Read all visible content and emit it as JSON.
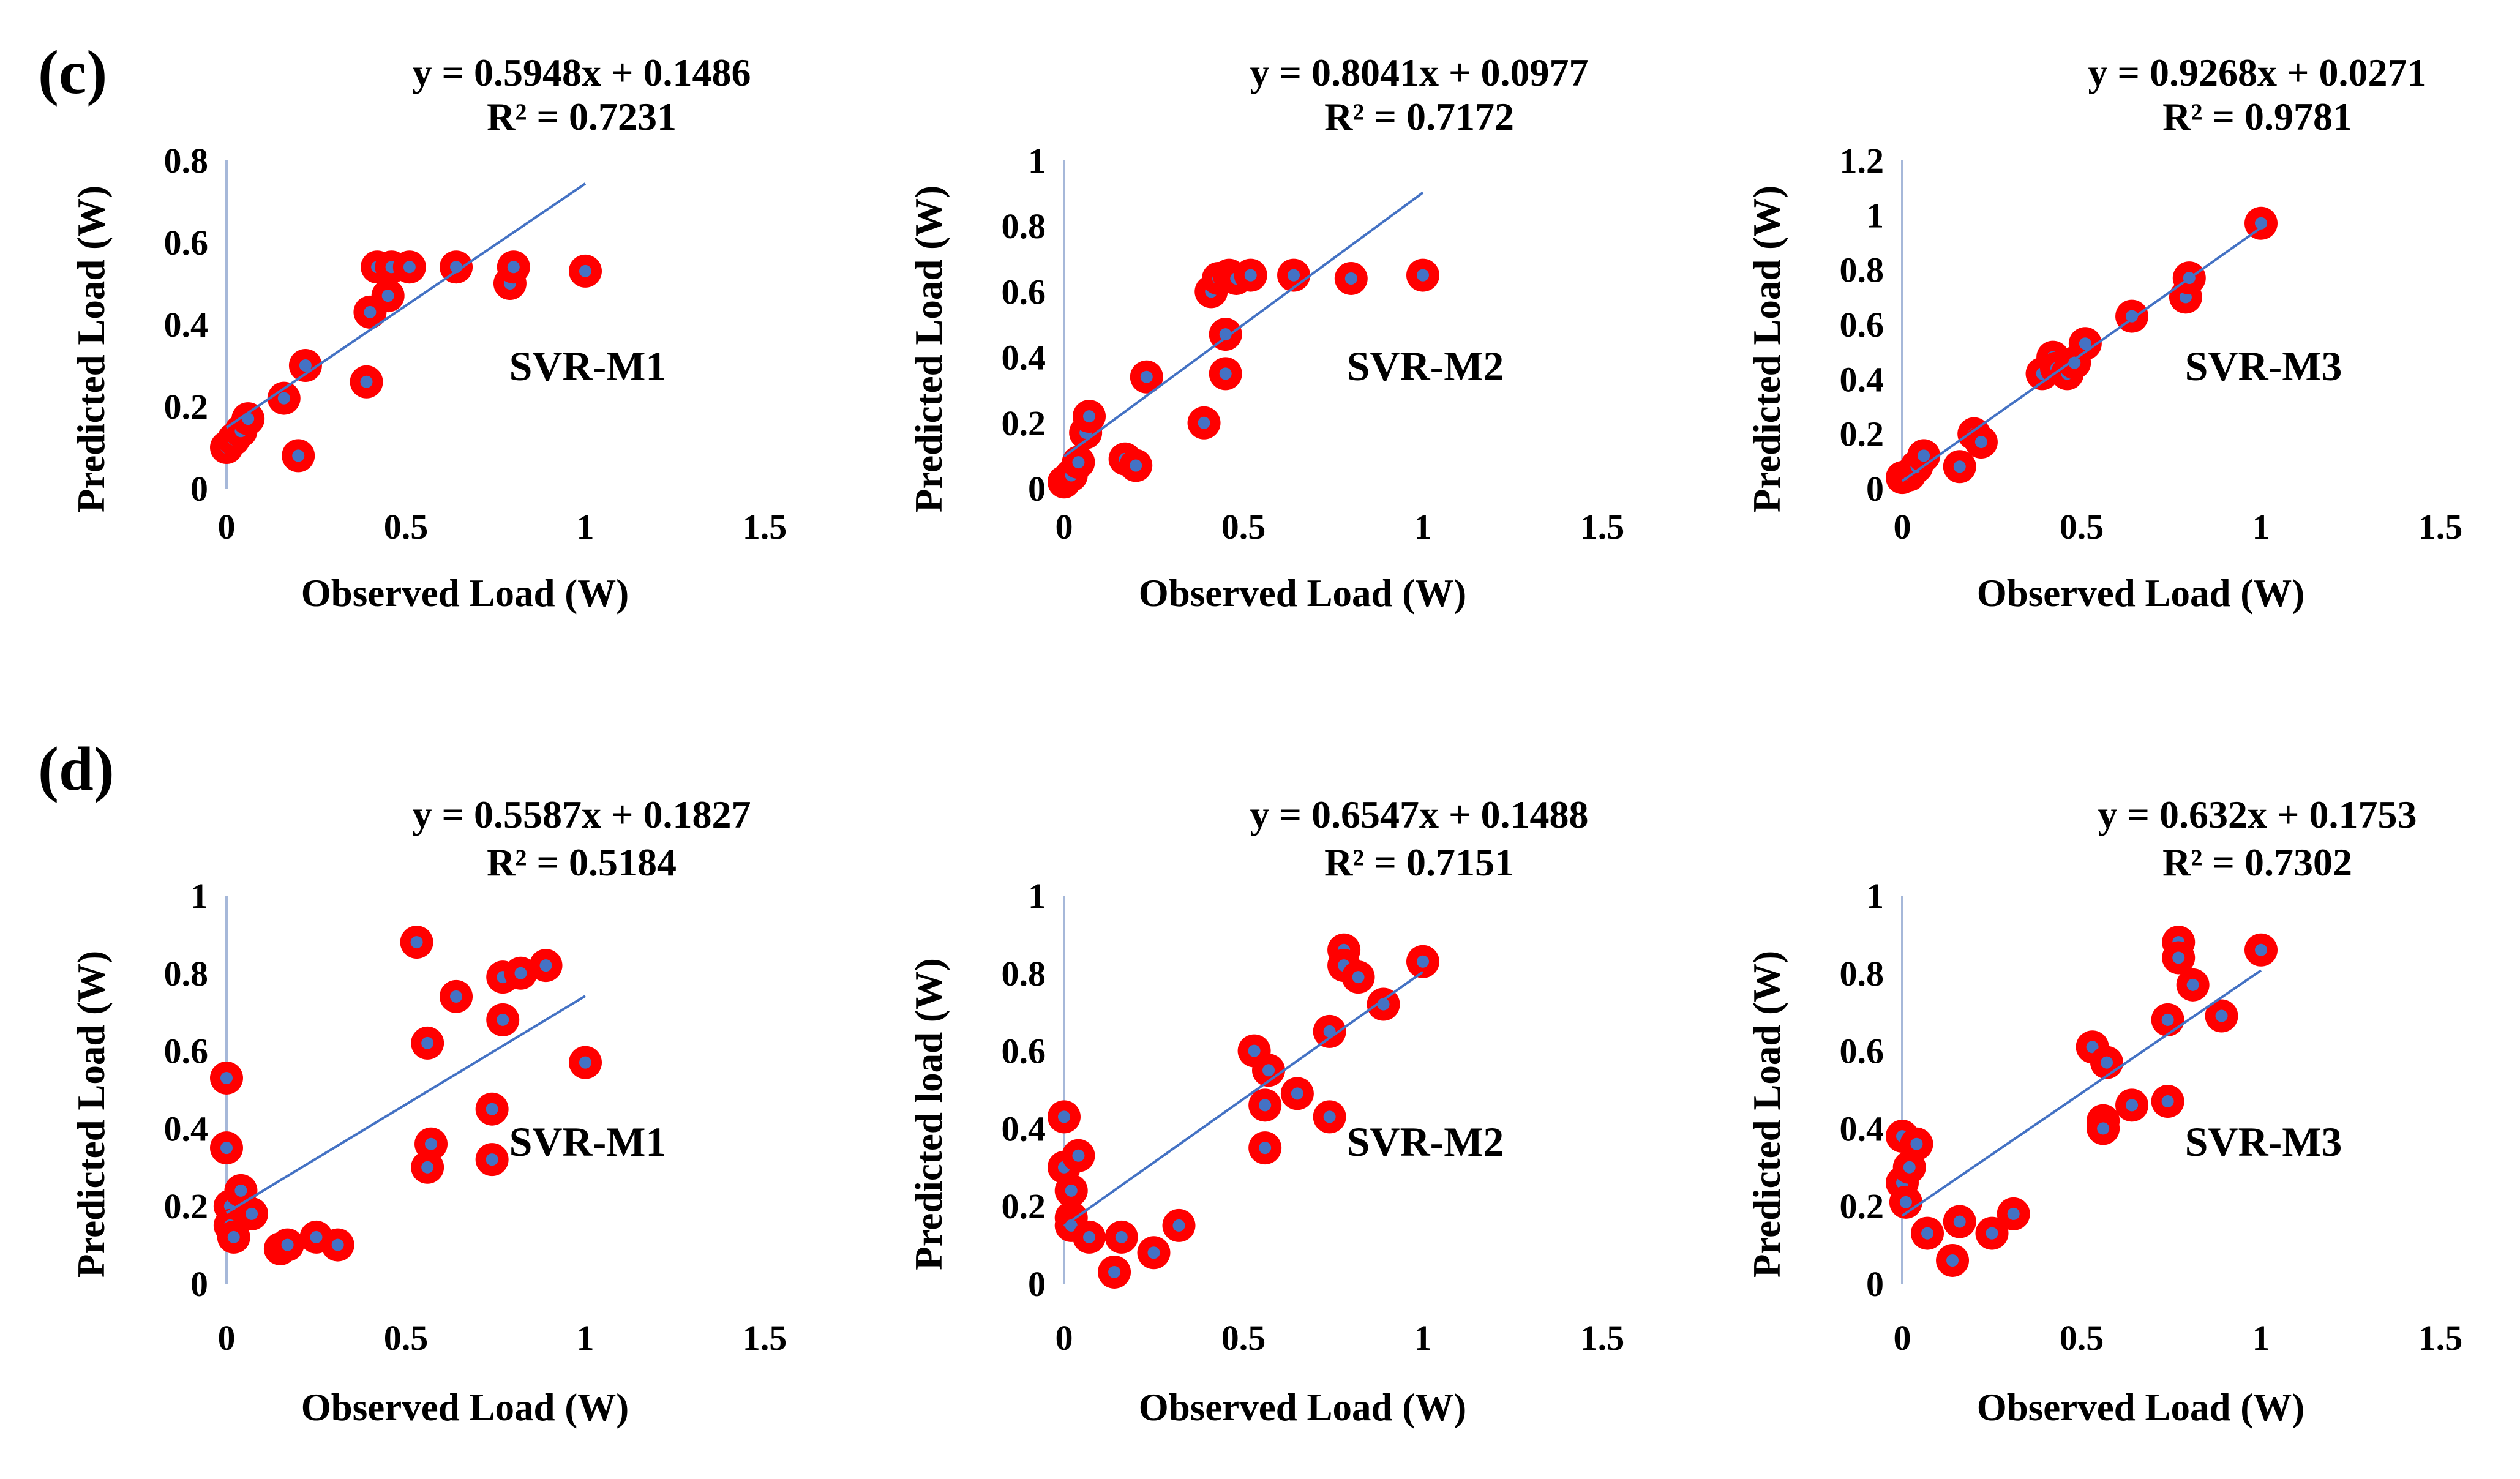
{
  "panels": [
    {
      "label": "(c)",
      "charts": [
        {
          "type": "scatter",
          "model": "SVR-M1",
          "equation": "y = 0.5948x + 0.1486",
          "r2": "R² = 0.7231",
          "xlabel": "Observed Load (W)",
          "ylabel": "Predicted Load (W)",
          "xlim": [
            0,
            1.5
          ],
          "ylim": [
            0,
            0.8
          ],
          "xticks": [
            "0",
            "0.5",
            "1",
            "1.5"
          ],
          "yticks": [
            "0",
            "0.2",
            "0.4",
            "0.6",
            "0.8"
          ],
          "trend": {
            "slope": 0.5948,
            "intercept": 0.1486,
            "x_range": [
              0,
              1
            ]
          },
          "points": [
            [
              0.0,
              0.1
            ],
            [
              0.02,
              0.12
            ],
            [
              0.04,
              0.14
            ],
            [
              0.06,
              0.17
            ],
            [
              0.16,
              0.22
            ],
            [
              0.2,
              0.08
            ],
            [
              0.22,
              0.3
            ],
            [
              0.39,
              0.26
            ],
            [
              0.4,
              0.43
            ],
            [
              0.42,
              0.54
            ],
            [
              0.45,
              0.47
            ],
            [
              0.46,
              0.54
            ],
            [
              0.51,
              0.54
            ],
            [
              0.64,
              0.54
            ],
            [
              0.79,
              0.5
            ],
            [
              0.8,
              0.54
            ],
            [
              1.0,
              0.53
            ]
          ]
        },
        {
          "type": "scatter",
          "model": "SVR-M2",
          "equation": "y = 0.8041x + 0.0977",
          "r2": "R² = 0.7172",
          "xlabel": "Observed Load (W)",
          "ylabel": "Predicted Load (W)",
          "xlim": [
            0,
            1.5
          ],
          "ylim": [
            0,
            1
          ],
          "xticks": [
            "0",
            "0.5",
            "1",
            "1.5"
          ],
          "yticks": [
            "0",
            "0.2",
            "0.4",
            "0.6",
            "0.8",
            "1"
          ],
          "trend": {
            "slope": 0.8041,
            "intercept": 0.0977,
            "x_range": [
              0,
              1
            ]
          },
          "points": [
            [
              0.0,
              0.02
            ],
            [
              0.02,
              0.04
            ],
            [
              0.04,
              0.08
            ],
            [
              0.06,
              0.17
            ],
            [
              0.07,
              0.22
            ],
            [
              0.17,
              0.09
            ],
            [
              0.2,
              0.07
            ],
            [
              0.23,
              0.34
            ],
            [
              0.39,
              0.2
            ],
            [
              0.41,
              0.6
            ],
            [
              0.43,
              0.64
            ],
            [
              0.45,
              0.47
            ],
            [
              0.45,
              0.35
            ],
            [
              0.46,
              0.65
            ],
            [
              0.48,
              0.64
            ],
            [
              0.52,
              0.65
            ],
            [
              0.64,
              0.65
            ],
            [
              0.8,
              0.64
            ],
            [
              1.0,
              0.65
            ]
          ]
        },
        {
          "type": "scatter",
          "model": "SVR-M3",
          "equation": "y = 0.9268x + 0.0271",
          "r2": "R² = 0.9781",
          "xlabel": "Observed Load (W)",
          "ylabel": "Predicted Load (W)",
          "xlim": [
            0,
            1.5
          ],
          "ylim": [
            0,
            1.2
          ],
          "xticks": [
            "0",
            "0.5",
            "1",
            "1.5"
          ],
          "yticks": [
            "0",
            "0.2",
            "0.4",
            "0.6",
            "0.8",
            "1",
            "1.2"
          ],
          "trend": {
            "slope": 0.9268,
            "intercept": 0.0271,
            "x_range": [
              0,
              1
            ]
          },
          "points": [
            [
              0.0,
              0.04
            ],
            [
              0.02,
              0.05
            ],
            [
              0.04,
              0.08
            ],
            [
              0.06,
              0.12
            ],
            [
              0.16,
              0.08
            ],
            [
              0.2,
              0.2
            ],
            [
              0.22,
              0.17
            ],
            [
              0.39,
              0.42
            ],
            [
              0.42,
              0.48
            ],
            [
              0.43,
              0.44
            ],
            [
              0.46,
              0.42
            ],
            [
              0.48,
              0.46
            ],
            [
              0.51,
              0.53
            ],
            [
              0.64,
              0.63
            ],
            [
              0.79,
              0.7
            ],
            [
              0.8,
              0.77
            ],
            [
              1.0,
              0.97
            ]
          ]
        }
      ]
    },
    {
      "label": "(d)",
      "charts": [
        {
          "type": "scatter",
          "model": "SVR-M1",
          "equation": "y = 0.5587x + 0.1827",
          "r2": "R² = 0.5184",
          "xlabel": "Observed Load (W)",
          "ylabel": "Predicted Load (W)",
          "xlim": [
            0,
            1.5
          ],
          "ylim": [
            0,
            1
          ],
          "xticks": [
            "0",
            "0.5",
            "1",
            "1.5"
          ],
          "yticks": [
            "0",
            "0.2",
            "0.4",
            "0.6",
            "0.8",
            "1"
          ],
          "trend": {
            "slope": 0.5587,
            "intercept": 0.1827,
            "x_range": [
              0,
              1
            ]
          },
          "points": [
            [
              0.0,
              0.53
            ],
            [
              0.0,
              0.35
            ],
            [
              0.01,
              0.2
            ],
            [
              0.01,
              0.15
            ],
            [
              0.02,
              0.12
            ],
            [
              0.04,
              0.24
            ],
            [
              0.07,
              0.18
            ],
            [
              0.15,
              0.09
            ],
            [
              0.17,
              0.1
            ],
            [
              0.25,
              0.12
            ],
            [
              0.31,
              0.1
            ],
            [
              0.53,
              0.88
            ],
            [
              0.56,
              0.62
            ],
            [
              0.57,
              0.36
            ],
            [
              0.56,
              0.3
            ],
            [
              0.64,
              0.74
            ],
            [
              0.74,
              0.45
            ],
            [
              0.74,
              0.32
            ],
            [
              0.77,
              0.79
            ],
            [
              0.77,
              0.68
            ],
            [
              0.82,
              0.8
            ],
            [
              0.89,
              0.82
            ],
            [
              1.0,
              0.57
            ]
          ]
        },
        {
          "type": "scatter",
          "model": "SVR-M2",
          "equation": "y = 0.6547x + 0.1488",
          "r2": "R² = 0.7151",
          "xlabel": "Observed Load (W)",
          "ylabel": "Predicted load (W)",
          "xlim": [
            0,
            1.5
          ],
          "ylim": [
            0,
            1
          ],
          "xticks": [
            "0",
            "0.5",
            "1",
            "1.5"
          ],
          "yticks": [
            "0",
            "0.2",
            "0.4",
            "0.6",
            "0.8",
            "1"
          ],
          "trend": {
            "slope": 0.6547,
            "intercept": 0.1488,
            "x_range": [
              0,
              1
            ]
          },
          "points": [
            [
              0.0,
              0.43
            ],
            [
              0.0,
              0.3
            ],
            [
              0.02,
              0.24
            ],
            [
              0.02,
              0.17
            ],
            [
              0.02,
              0.15
            ],
            [
              0.04,
              0.33
            ],
            [
              0.07,
              0.12
            ],
            [
              0.14,
              0.03
            ],
            [
              0.16,
              0.12
            ],
            [
              0.25,
              0.08
            ],
            [
              0.32,
              0.15
            ],
            [
              0.53,
              0.6
            ],
            [
              0.56,
              0.46
            ],
            [
              0.56,
              0.35
            ],
            [
              0.57,
              0.55
            ],
            [
              0.65,
              0.49
            ],
            [
              0.74,
              0.65
            ],
            [
              0.74,
              0.43
            ],
            [
              0.78,
              0.86
            ],
            [
              0.78,
              0.82
            ],
            [
              0.82,
              0.79
            ],
            [
              0.89,
              0.72
            ],
            [
              1.0,
              0.83
            ]
          ]
        },
        {
          "type": "scatter",
          "model": "SVR-M3",
          "equation": "y = 0.632x + 0.1753",
          "r2": "R² = 0.7302",
          "xlabel": "Observed Load (W)",
          "ylabel": "Predicted Load (W)",
          "xlim": [
            0,
            1.5
          ],
          "ylim": [
            0,
            1
          ],
          "xticks": [
            "0",
            "0.5",
            "1",
            "1.5"
          ],
          "yticks": [
            "0",
            "0.2",
            "0.4",
            "0.6",
            "0.8",
            "1"
          ],
          "trend": {
            "slope": 0.632,
            "intercept": 0.1753,
            "x_range": [
              0,
              1
            ]
          },
          "points": [
            [
              0.0,
              0.38
            ],
            [
              0.0,
              0.26
            ],
            [
              0.01,
              0.21
            ],
            [
              0.02,
              0.3
            ],
            [
              0.04,
              0.36
            ],
            [
              0.07,
              0.13
            ],
            [
              0.14,
              0.06
            ],
            [
              0.16,
              0.16
            ],
            [
              0.25,
              0.13
            ],
            [
              0.31,
              0.18
            ],
            [
              0.53,
              0.61
            ],
            [
              0.56,
              0.42
            ],
            [
              0.56,
              0.4
            ],
            [
              0.57,
              0.57
            ],
            [
              0.64,
              0.46
            ],
            [
              0.74,
              0.68
            ],
            [
              0.74,
              0.47
            ],
            [
              0.77,
              0.88
            ],
            [
              0.77,
              0.84
            ],
            [
              0.81,
              0.77
            ],
            [
              0.89,
              0.69
            ],
            [
              1.0,
              0.86
            ]
          ]
        }
      ]
    }
  ],
  "colors": {
    "marker_ring": "#ff0000",
    "marker_center": "#4472c4",
    "trendline": "#4472c4",
    "axis": "#a6b8d9"
  }
}
